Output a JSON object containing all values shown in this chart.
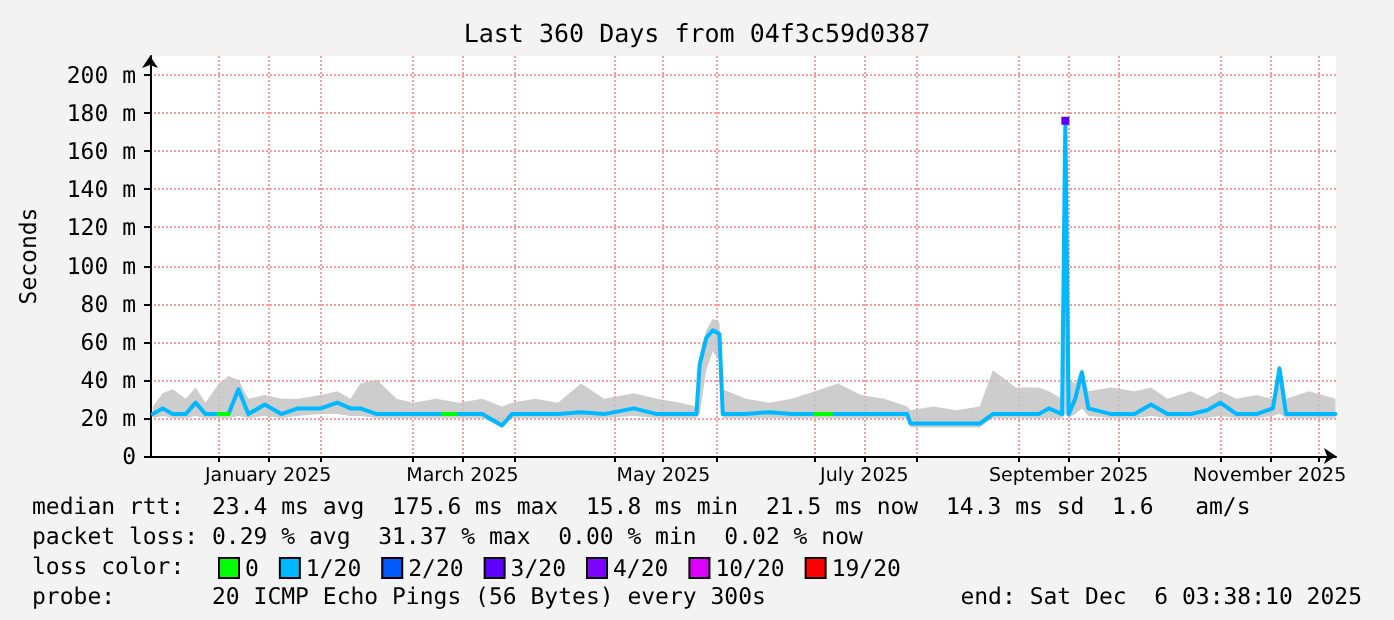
{
  "chart_data": {
    "type": "line",
    "title": "Last 360 Days from 04f3c59d0387",
    "ylabel": "Seconds",
    "grid": true,
    "legend": "bottom",
    "legend_title": "loss color:",
    "line_style": "solid",
    "xlim": [
      "2024-12-11T03:38",
      "2025-12-06T03:38"
    ],
    "xticks": [
      {
        "value": "2025-01-01",
        "label": null
      },
      {
        "value": "2025-01-16",
        "label": "January 2025"
      },
      {
        "value": "2025-02-01",
        "label": null
      },
      {
        "value": "2025-03-01",
        "label": null
      },
      {
        "value": "2025-03-16",
        "label": "March 2025"
      },
      {
        "value": "2025-04-01",
        "label": null
      },
      {
        "value": "2025-05-01",
        "label": null
      },
      {
        "value": "2025-05-16",
        "label": "May 2025"
      },
      {
        "value": "2025-06-01",
        "label": null
      },
      {
        "value": "2025-07-01",
        "label": null
      },
      {
        "value": "2025-07-16",
        "label": "July 2025"
      },
      {
        "value": "2025-08-01",
        "label": null
      },
      {
        "value": "2025-09-01",
        "label": null
      },
      {
        "value": "2025-09-16",
        "label": "September 2025"
      },
      {
        "value": "2025-10-01",
        "label": null
      },
      {
        "value": "2025-11-01",
        "label": null
      },
      {
        "value": "2025-11-16",
        "label": "November 2025"
      },
      {
        "value": "2025-12-01",
        "label": null
      }
    ],
    "ylim": [
      0,
      210
    ],
    "yticks": [
      {
        "value": 0,
        "label": "0"
      },
      {
        "value": 20,
        "label": "20 m"
      },
      {
        "value": 40,
        "label": "40 m"
      },
      {
        "value": 60,
        "label": "60 m"
      },
      {
        "value": 80,
        "label": "80 m"
      },
      {
        "value": 100,
        "label": "100 m"
      },
      {
        "value": 120,
        "label": "120 m"
      },
      {
        "value": 140,
        "label": "140 m"
      },
      {
        "value": 160,
        "label": "160 m"
      },
      {
        "value": 180,
        "label": "180 m"
      },
      {
        "value": 200,
        "label": "200 m"
      }
    ],
    "series": [
      {
        "name": "0",
        "color": "#00ff00",
        "x": [
          "2025-01-01",
          "2025-01-04",
          "2025-01-05",
          "2025-03-10",
          "2025-03-14",
          "2025-03-15",
          "2025-07-01",
          "2025-07-06"
        ],
        "values": [
          22,
          22,
          null,
          22,
          22,
          null,
          22,
          22
        ]
      },
      {
        "name": "1/20",
        "color": "#00b8ff",
        "x": [
          "2024-12-12",
          "2024-12-15",
          "2024-12-18",
          "2024-12-22",
          "2024-12-25",
          "2024-12-28",
          "2025-01-01",
          "2025-01-04",
          "2025-01-07",
          "2025-01-10",
          "2025-01-15",
          "2025-01-20",
          "2025-01-25",
          "2025-02-01",
          "2025-02-06",
          "2025-02-10",
          "2025-02-13",
          "2025-02-18",
          "2025-02-24",
          "2025-03-01",
          "2025-03-08",
          "2025-03-15",
          "2025-03-22",
          "2025-03-28",
          "2025-03-31",
          "2025-04-07",
          "2025-04-14",
          "2025-04-21",
          "2025-04-28",
          "2025-05-07",
          "2025-05-14",
          "2025-05-21",
          "2025-05-26",
          "2025-05-27",
          "2025-05-29",
          "2025-05-31",
          "2025-06-02",
          "2025-06-03",
          "2025-06-10",
          "2025-06-17",
          "2025-06-24",
          "2025-07-01",
          "2025-07-08",
          "2025-07-15",
          "2025-07-22",
          "2025-07-29",
          "2025-07-30",
          "2025-08-06",
          "2025-08-13",
          "2025-08-20",
          "2025-08-24",
          "2025-08-31",
          "2025-09-07",
          "2025-09-10",
          "2025-09-14",
          "2025-09-15",
          "2025-09-16",
          "2025-09-18",
          "2025-09-20",
          "2025-09-22",
          "2025-09-29",
          "2025-10-06",
          "2025-10-11",
          "2025-10-16",
          "2025-10-23",
          "2025-10-28",
          "2025-11-01",
          "2025-11-06",
          "2025-11-12",
          "2025-11-17",
          "2025-11-19",
          "2025-11-21",
          "2025-11-28",
          "2025-12-06"
        ],
        "values": [
          22,
          25,
          22,
          22,
          28,
          22,
          22,
          22,
          35,
          22,
          27,
          22,
          25,
          25,
          28,
          25,
          25,
          22,
          22,
          22,
          22,
          22,
          22,
          16,
          22,
          22,
          22,
          23,
          22,
          25,
          22,
          22,
          22,
          48,
          62,
          66,
          64,
          22,
          22,
          23,
          22,
          22,
          22,
          22,
          22,
          22,
          17,
          17,
          17,
          17,
          22,
          22,
          22,
          25,
          22,
          176,
          22,
          30,
          44,
          25,
          22,
          22,
          27,
          22,
          22,
          24,
          28,
          22,
          22,
          25,
          46,
          22,
          22,
          22
        ],
        "lower": [
          20,
          21,
          20,
          20,
          21,
          20,
          20,
          20,
          21,
          20,
          21,
          20,
          21,
          22,
          22,
          21,
          21,
          20,
          20,
          20,
          20,
          20,
          20,
          15,
          20,
          20,
          20,
          20,
          20,
          21,
          20,
          20,
          20,
          22,
          45,
          55,
          50,
          20,
          20,
          20,
          20,
          20,
          20,
          20,
          20,
          20,
          15,
          15,
          15,
          15,
          20,
          20,
          20,
          20,
          20,
          22,
          20,
          22,
          25,
          21,
          20,
          20,
          21,
          20,
          20,
          20,
          21,
          20,
          20,
          21,
          22,
          20,
          20,
          20
        ],
        "upper": [
          26,
          33,
          35,
          30,
          36,
          28,
          38,
          42,
          40,
          30,
          32,
          30,
          30,
          32,
          34,
          30,
          38,
          40,
          30,
          28,
          30,
          28,
          30,
          26,
          28,
          30,
          28,
          38,
          30,
          33,
          30,
          28,
          26,
          52,
          66,
          72,
          70,
          35,
          30,
          28,
          30,
          34,
          38,
          32,
          30,
          26,
          24,
          26,
          24,
          26,
          45,
          36,
          36,
          34,
          30,
          180,
          40,
          38,
          46,
          34,
          36,
          34,
          36,
          30,
          34,
          30,
          34,
          30,
          32,
          30,
          48,
          30,
          34,
          30
        ]
      },
      {
        "name": "2/20",
        "color": "#0059ff"
      },
      {
        "name": "3/20",
        "color": "#5e00ff",
        "x": [
          "2025-09-15"
        ],
        "values": [
          176
        ],
        "marker": "square"
      },
      {
        "name": "4/20",
        "color": "#7e00ff"
      },
      {
        "name": "10/20",
        "color": "#dd00ff"
      },
      {
        "name": "19/20",
        "color": "#ff0000"
      }
    ],
    "annotations": [
      "median rtt:  23.4 ms avg  175.6 ms max  15.8 ms min  21.5 ms now  14.3 ms sd  1.6   am/s",
      "packet loss: 0.29 % avg  31.37 % max  0.00 % min  0.02 % now",
      "probe:       20 ICMP Echo Pings (56 Bytes) every 300s",
      "end: Sat Dec  6 03:38:10 2025"
    ]
  }
}
